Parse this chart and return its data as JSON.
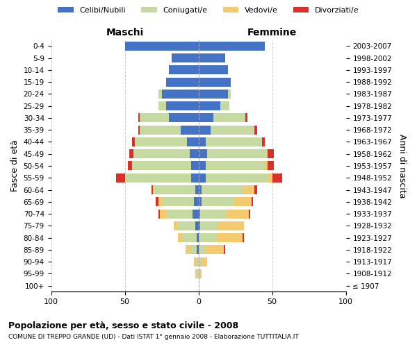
{
  "age_groups": [
    "100+",
    "95-99",
    "90-94",
    "85-89",
    "80-84",
    "75-79",
    "70-74",
    "65-69",
    "60-64",
    "55-59",
    "50-54",
    "45-49",
    "40-44",
    "35-39",
    "30-34",
    "25-29",
    "20-24",
    "15-19",
    "10-14",
    "5-9",
    "0-4"
  ],
  "birth_years": [
    "≤ 1907",
    "1908-1912",
    "1913-1917",
    "1918-1922",
    "1923-1927",
    "1928-1932",
    "1933-1937",
    "1938-1942",
    "1943-1947",
    "1948-1952",
    "1953-1957",
    "1958-1962",
    "1963-1967",
    "1968-1972",
    "1973-1977",
    "1978-1982",
    "1983-1987",
    "1988-1992",
    "1993-1997",
    "1998-2002",
    "2003-2007"
  ],
  "colors": {
    "celibe": "#4472c4",
    "coniugato": "#c5d9a0",
    "vedovo": "#f5c96e",
    "divorziato": "#d9302c"
  },
  "maschi": {
    "celibe": [
      0,
      0,
      0,
      1,
      1,
      2,
      4,
      3,
      2,
      5,
      5,
      6,
      8,
      12,
      20,
      22,
      25,
      22,
      20,
      18,
      50
    ],
    "coniugato": [
      0,
      1,
      1,
      5,
      10,
      12,
      18,
      22,
      28,
      45,
      40,
      38,
      35,
      28,
      20,
      5,
      2,
      0,
      0,
      0,
      0
    ],
    "vedovo": [
      0,
      1,
      2,
      3,
      3,
      3,
      4,
      2,
      1,
      0,
      0,
      0,
      0,
      0,
      0,
      0,
      0,
      0,
      0,
      0,
      0
    ],
    "divorziato": [
      0,
      0,
      0,
      0,
      0,
      0,
      1,
      2,
      1,
      6,
      3,
      3,
      2,
      1,
      1,
      0,
      0,
      0,
      0,
      0,
      0
    ]
  },
  "femmine": {
    "nubile": [
      0,
      0,
      0,
      0,
      0,
      1,
      1,
      2,
      2,
      5,
      5,
      6,
      5,
      8,
      10,
      15,
      20,
      22,
      20,
      18,
      45
    ],
    "coniugata": [
      0,
      1,
      2,
      5,
      12,
      12,
      18,
      22,
      28,
      42,
      40,
      40,
      38,
      30,
      22,
      6,
      2,
      0,
      0,
      0,
      0
    ],
    "vedova": [
      0,
      1,
      4,
      12,
      18,
      18,
      15,
      12,
      8,
      3,
      2,
      1,
      0,
      0,
      0,
      0,
      0,
      0,
      0,
      0,
      0
    ],
    "divorziata": [
      0,
      0,
      0,
      1,
      1,
      0,
      1,
      1,
      2,
      7,
      4,
      4,
      2,
      2,
      1,
      0,
      0,
      0,
      0,
      0,
      0
    ]
  },
  "xlim": 100,
  "title1": "Popolazione per età, sesso e stato civile - 2008",
  "title2": "COMUNE DI TREPPO GRANDE (UD) - Dati ISTAT 1° gennaio 2008 - Elaborazione TUTTITALIA.IT",
  "legend_labels": [
    "Celibi/Nubili",
    "Coniugati/e",
    "Vedovi/e",
    "Divorziati/e"
  ],
  "ylabel_left": "Fasce di età",
  "ylabel_right": "Anni di nascita",
  "xlabel_left": "Maschi",
  "xlabel_right": "Femmine"
}
